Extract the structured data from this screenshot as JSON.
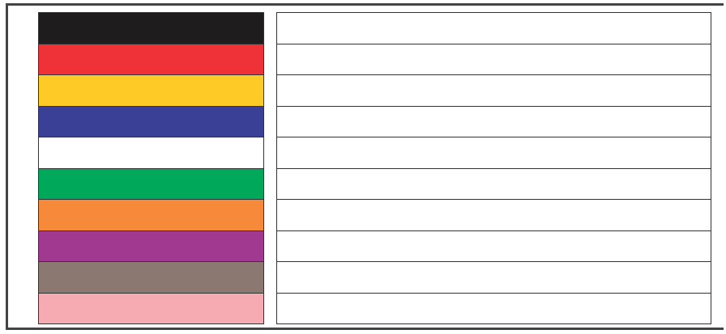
{
  "color_rows": [
    {
      "color": "#1e1c1c",
      "label": ""
    },
    {
      "color": "#ee3238",
      "label": ""
    },
    {
      "color": "#fecb26",
      "label": ""
    },
    {
      "color": "#3a4095",
      "label": ""
    },
    {
      "color": "#ffffff",
      "label": ""
    },
    {
      "color": "#00a859",
      "label": ""
    },
    {
      "color": "#f6893a",
      "label": ""
    },
    {
      "color": "#a0398f",
      "label": ""
    },
    {
      "color": "#8a7871",
      "label": ""
    },
    {
      "color": "#f6abb2",
      "label": ""
    }
  ]
}
